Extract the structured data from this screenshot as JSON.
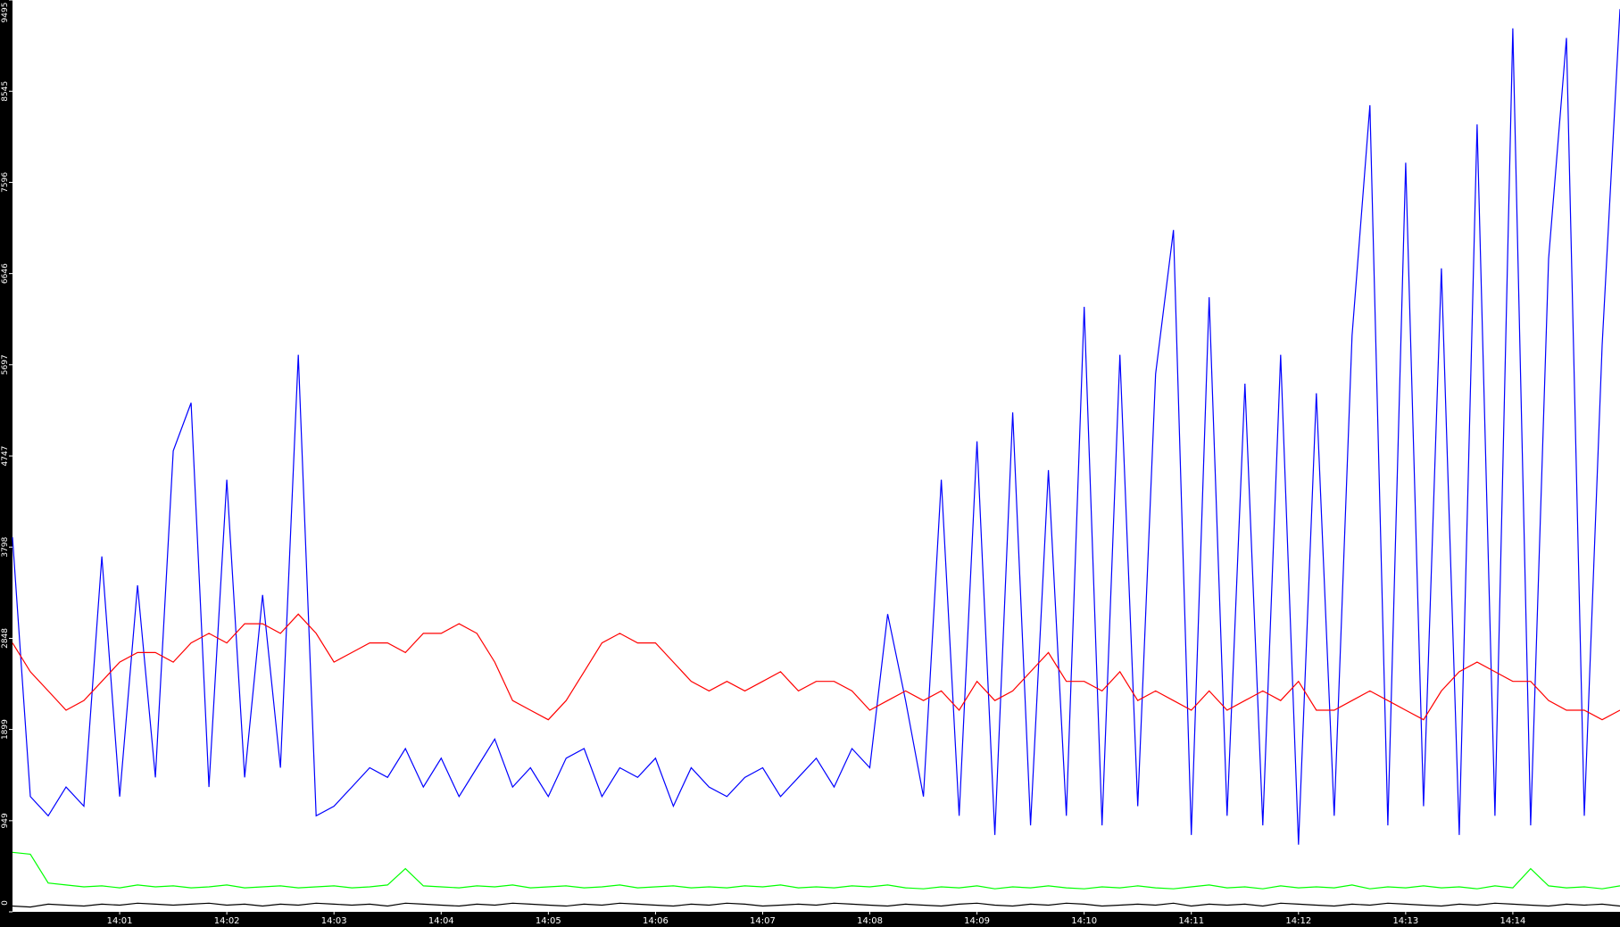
{
  "chart_data": {
    "type": "line",
    "categories": [
      null,
      null,
      null,
      null,
      null,
      null,
      "14:01",
      null,
      null,
      null,
      null,
      null,
      "14:02",
      null,
      null,
      null,
      null,
      null,
      "14:03",
      null,
      null,
      null,
      null,
      null,
      "14:04",
      null,
      null,
      null,
      null,
      null,
      "14:05",
      null,
      null,
      null,
      null,
      null,
      "14:06",
      null,
      null,
      null,
      null,
      null,
      "14:07",
      null,
      null,
      null,
      null,
      null,
      "14:08",
      null,
      null,
      null,
      null,
      null,
      "14:09",
      null,
      null,
      null,
      null,
      null,
      "14:10",
      null,
      null,
      null,
      null,
      null,
      "14:11",
      null,
      null,
      null,
      null,
      null,
      "14:12",
      null,
      null,
      null,
      null,
      null,
      "14:13",
      null,
      null,
      null,
      null,
      null,
      "14:14",
      null,
      null,
      null,
      null,
      null,
      null
    ],
    "ylim": [
      0,
      9495
    ],
    "yticks": [
      0,
      949,
      1899,
      2848,
      3798,
      4747,
      5697,
      6646,
      7596,
      8545,
      9495
    ],
    "grid": false,
    "series": [
      {
        "color": "#0000ff",
        "values": [
          3900,
          1200,
          1000,
          1300,
          1100,
          3700,
          1200,
          3400,
          1400,
          4800,
          5300,
          1300,
          4500,
          1400,
          3300,
          1500,
          5800,
          1000,
          1100,
          1300,
          1500,
          1400,
          1700,
          1300,
          1600,
          1200,
          1500,
          1800,
          1300,
          1500,
          1200,
          1600,
          1700,
          1200,
          1500,
          1400,
          1600,
          1100,
          1500,
          1300,
          1200,
          1400,
          1500,
          1200,
          1400,
          1600,
          1300,
          1700,
          1500,
          3100,
          2200,
          1200,
          4500,
          1000,
          4900,
          800,
          5200,
          900,
          4600,
          1000,
          6300,
          900,
          5800,
          1100,
          5600,
          7100,
          800,
          6400,
          1000,
          5500,
          900,
          5800,
          700,
          5400,
          1000,
          6000,
          8400,
          900,
          7800,
          1100,
          6700,
          800,
          8200,
          1000,
          9200,
          900,
          6800,
          9100,
          1000,
          5900,
          9400
        ]
      },
      {
        "color": "#ff0000",
        "values": [
          2800,
          2500,
          2300,
          2100,
          2200,
          2400,
          2600,
          2700,
          2700,
          2600,
          2800,
          2900,
          2800,
          3000,
          3000,
          2900,
          3100,
          2900,
          2600,
          2700,
          2800,
          2800,
          2700,
          2900,
          2900,
          3000,
          2900,
          2600,
          2200,
          2100,
          2000,
          2200,
          2500,
          2800,
          2900,
          2800,
          2800,
          2600,
          2400,
          2300,
          2400,
          2300,
          2400,
          2500,
          2300,
          2400,
          2400,
          2300,
          2100,
          2200,
          2300,
          2200,
          2300,
          2100,
          2400,
          2200,
          2300,
          2500,
          2700,
          2400,
          2400,
          2300,
          2500,
          2200,
          2300,
          2200,
          2100,
          2300,
          2100,
          2200,
          2300,
          2200,
          2400,
          2100,
          2100,
          2200,
          2300,
          2200,
          2100,
          2000,
          2300,
          2500,
          2600,
          2500,
          2400,
          2400,
          2200,
          2100,
          2100,
          2000,
          2100
        ]
      },
      {
        "color": "#00ff00",
        "values": [
          620,
          600,
          300,
          280,
          260,
          270,
          250,
          280,
          260,
          270,
          250,
          260,
          280,
          250,
          260,
          270,
          250,
          260,
          270,
          250,
          260,
          280,
          450,
          270,
          260,
          250,
          270,
          260,
          280,
          250,
          260,
          270,
          250,
          260,
          280,
          250,
          260,
          270,
          250,
          260,
          250,
          270,
          260,
          280,
          250,
          260,
          250,
          270,
          260,
          280,
          250,
          240,
          260,
          250,
          270,
          240,
          260,
          250,
          270,
          250,
          240,
          260,
          250,
          270,
          250,
          240,
          260,
          280,
          250,
          260,
          240,
          270,
          250,
          260,
          250,
          280,
          240,
          260,
          250,
          270,
          250,
          260,
          240,
          270,
          250,
          450,
          270,
          250,
          260,
          240,
          270
        ]
      },
      {
        "color": "#000000",
        "values": [
          60,
          50,
          80,
          70,
          60,
          80,
          70,
          90,
          80,
          70,
          80,
          90,
          70,
          80,
          60,
          80,
          70,
          90,
          80,
          70,
          80,
          60,
          90,
          80,
          70,
          60,
          80,
          70,
          90,
          80,
          70,
          60,
          80,
          70,
          90,
          80,
          70,
          60,
          80,
          70,
          90,
          80,
          60,
          70,
          80,
          70,
          90,
          80,
          70,
          60,
          80,
          70,
          60,
          80,
          90,
          70,
          60,
          80,
          70,
          90,
          80,
          60,
          70,
          80,
          70,
          90,
          60,
          80,
          70,
          80,
          60,
          90,
          80,
          70,
          60,
          80,
          70,
          90,
          80,
          70,
          60,
          80,
          70,
          90,
          80,
          70,
          60,
          80,
          70,
          80,
          60
        ]
      }
    ]
  }
}
